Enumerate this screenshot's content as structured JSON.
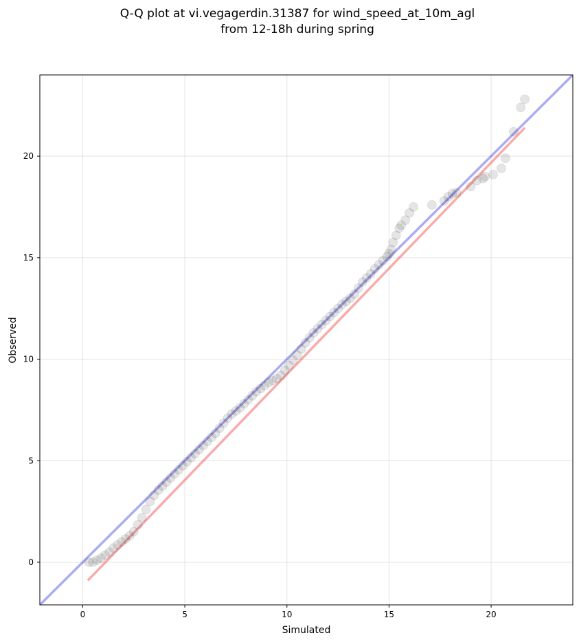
{
  "chart_data": {
    "type": "scatter",
    "title_line1": "Q-Q plot at vi.vegagerdin.31387 for wind_speed_at_10m_agl",
    "title_line2": "from 12-18h during spring",
    "xlabel": "Simulated",
    "ylabel": "Observed",
    "xlim": [
      -2.1,
      24.0
    ],
    "ylim": [
      -2.1,
      24.0
    ],
    "xticks": [
      0,
      5,
      10,
      15,
      20
    ],
    "yticks": [
      0,
      5,
      10,
      15,
      20
    ],
    "grid": true,
    "colors": {
      "points": "#000000",
      "identity_line": "#0000dd",
      "fit_line": "#ee0000",
      "grid": "#b0b0b0"
    },
    "identity_line": {
      "x": [
        -2.1,
        24.0
      ],
      "y": [
        -2.1,
        24.0
      ]
    },
    "fit_line": {
      "x": [
        0.25,
        21.65
      ],
      "y": [
        -0.9,
        21.4
      ]
    },
    "points": {
      "x": [
        0.3,
        0.5,
        0.7,
        0.9,
        1.1,
        1.3,
        1.5,
        1.7,
        1.9,
        2.1,
        2.3,
        2.5,
        2.7,
        2.9,
        3.1,
        3.3,
        3.5,
        3.7,
        3.9,
        4.1,
        4.3,
        4.5,
        4.7,
        4.9,
        5.1,
        5.3,
        5.5,
        5.7,
        5.9,
        6.1,
        6.3,
        6.5,
        6.7,
        6.9,
        7.1,
        7.3,
        7.5,
        7.7,
        7.9,
        8.1,
        8.3,
        8.5,
        8.7,
        8.9,
        9.1,
        9.3,
        9.5,
        9.7,
        9.9,
        10.1,
        10.3,
        10.5,
        10.7,
        10.9,
        11.1,
        11.3,
        11.5,
        11.7,
        11.9,
        12.1,
        12.3,
        12.5,
        12.7,
        12.9,
        13.1,
        13.3,
        13.5,
        13.7,
        13.9,
        14.1,
        14.3,
        14.5,
        14.7,
        14.9,
        15.0,
        15.1,
        15.2,
        15.35,
        15.5,
        15.6,
        15.8,
        16.0,
        16.2,
        17.1,
        17.7,
        17.9,
        18.1,
        18.3,
        19.0,
        19.3,
        19.6,
        19.7,
        20.1,
        20.5,
        20.7,
        21.1,
        21.45,
        21.65
      ],
      "y": [
        0.0,
        0.0,
        0.1,
        0.2,
        0.35,
        0.5,
        0.7,
        0.85,
        1.0,
        1.15,
        1.3,
        1.5,
        1.85,
        2.2,
        2.6,
        3.0,
        3.3,
        3.55,
        3.75,
        3.95,
        4.15,
        4.35,
        4.55,
        4.75,
        4.95,
        5.15,
        5.35,
        5.55,
        5.75,
        5.95,
        6.15,
        6.35,
        6.6,
        6.85,
        7.1,
        7.3,
        7.45,
        7.6,
        7.8,
        8.0,
        8.2,
        8.4,
        8.55,
        8.7,
        8.85,
        8.95,
        9.05,
        9.2,
        9.45,
        9.7,
        9.95,
        10.2,
        10.5,
        10.8,
        11.05,
        11.3,
        11.5,
        11.7,
        11.9,
        12.1,
        12.3,
        12.5,
        12.7,
        12.85,
        13.0,
        13.2,
        13.5,
        13.8,
        14.0,
        14.2,
        14.45,
        14.65,
        14.85,
        15.05,
        15.2,
        15.4,
        15.75,
        16.1,
        16.45,
        16.6,
        16.85,
        17.2,
        17.5,
        17.6,
        17.8,
        18.0,
        18.15,
        18.2,
        18.5,
        18.8,
        18.9,
        19.0,
        19.1,
        19.4,
        19.9,
        21.2,
        22.4,
        22.8
      ]
    }
  }
}
